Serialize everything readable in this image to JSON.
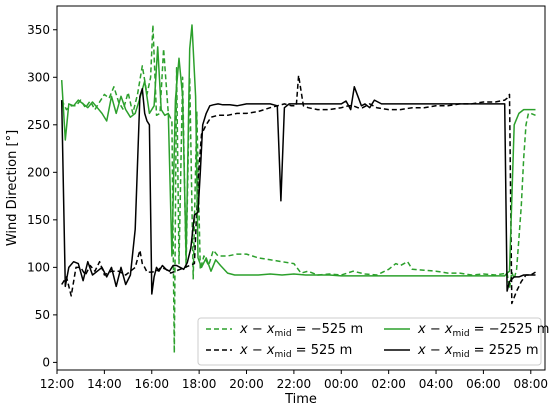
{
  "chart_data": {
    "type": "line",
    "xlabel": "Time",
    "ylabel": "Wind Direction [°]",
    "xlim": [
      12.0,
      32.6
    ],
    "ylim": [
      -8,
      375
    ],
    "x_ticks": [
      12,
      14,
      16,
      18,
      20,
      22,
      24,
      26,
      28,
      30,
      32
    ],
    "x_tick_labels": [
      "12:00",
      "14:00",
      "16:00",
      "18:00",
      "20:00",
      "22:00",
      "00:00",
      "02:00",
      "04:00",
      "06:00",
      "08:00"
    ],
    "y_ticks": [
      0,
      50,
      100,
      150,
      200,
      250,
      300,
      350
    ],
    "y_tick_labels": [
      "0",
      "50",
      "100",
      "150",
      "200",
      "250",
      "300",
      "350"
    ],
    "grid": false,
    "legend_position": "lower-right",
    "series": [
      {
        "name_prefix": "x − x",
        "name_sub": "mid",
        "name_suffix": " = −525 m",
        "color": "#2ca02c",
        "dash": "dashed",
        "x": [
          12.2,
          12.4,
          12.6,
          12.8,
          13.0,
          13.2,
          13.4,
          13.6,
          13.8,
          14.0,
          14.2,
          14.4,
          14.6,
          14.8,
          15.0,
          15.2,
          15.4,
          15.6,
          15.8,
          15.95,
          16.05,
          16.2,
          16.35,
          16.5,
          16.7,
          16.85,
          16.95,
          17.05,
          17.15,
          17.3,
          17.45,
          17.6,
          17.75,
          17.9,
          18.05,
          18.2,
          18.4,
          18.6,
          18.8,
          19.2,
          19.6,
          20.0,
          20.5,
          21.0,
          21.5,
          22.0,
          22.3,
          22.6,
          23.0,
          23.5,
          24.0,
          24.5,
          25.0,
          25.5,
          26.0,
          26.3,
          26.5,
          26.8,
          27.0,
          27.5,
          28.0,
          28.5,
          29.0,
          29.5,
          30.0,
          30.5,
          31.0,
          31.1,
          31.2,
          31.3,
          31.4,
          31.5,
          31.6,
          31.7,
          31.8,
          31.9,
          32.0,
          32.2
        ],
        "y": [
          276,
          266,
          270,
          270,
          276,
          268,
          275,
          266,
          274,
          282,
          278,
          290,
          274,
          266,
          284,
          262,
          282,
          312,
          282,
          300,
          355,
          260,
          262,
          330,
          262,
          254,
          10,
          310,
          104,
          300,
          100,
          300,
          88,
          264,
          98,
          112,
          102,
          118,
          112,
          112,
          114,
          114,
          110,
          108,
          106,
          104,
          94,
          96,
          92,
          93,
          92,
          96,
          93,
          92,
          98,
          104,
          102,
          106,
          98,
          97,
          96,
          94,
          94,
          92,
          93,
          92,
          94,
          78,
          95,
          88,
          98,
          130,
          165,
          215,
          250,
          262,
          262,
          260
        ]
      },
      {
        "name_prefix": "x − x",
        "name_sub": "mid",
        "name_suffix": " = 525 m",
        "color": "#000000",
        "dash": "dashed",
        "x": [
          12.2,
          12.4,
          12.6,
          12.8,
          13.0,
          13.2,
          13.4,
          13.6,
          13.8,
          14.0,
          14.3,
          14.6,
          14.9,
          15.1,
          15.3,
          15.5,
          15.6,
          15.7,
          15.8,
          15.9,
          16.0,
          16.2,
          16.4,
          16.6,
          16.8,
          17.0,
          17.2,
          17.4,
          17.6,
          17.8,
          17.95,
          18.1,
          18.3,
          18.5,
          18.8,
          19.2,
          19.6,
          20.0,
          20.5,
          21.0,
          21.3,
          21.6,
          21.9,
          22.1,
          22.2,
          22.4,
          22.6,
          23.0,
          23.5,
          24.0,
          24.3,
          24.5,
          24.7,
          24.9,
          25.2,
          25.5,
          26.0,
          26.5,
          27.0,
          27.5,
          28.0,
          28.5,
          29.0,
          29.5,
          30.0,
          30.5,
          30.9,
          31.0,
          31.1,
          31.2,
          31.4,
          31.6,
          31.8,
          32.0,
          32.2
        ],
        "y": [
          82,
          90,
          70,
          100,
          100,
          92,
          102,
          96,
          106,
          92,
          96,
          96,
          92,
          96,
          100,
          118,
          104,
          100,
          95,
          95,
          95,
          96,
          100,
          98,
          94,
          96,
          98,
          100,
          102,
          104,
          190,
          240,
          250,
          258,
          260,
          260,
          262,
          262,
          264,
          268,
          270,
          272,
          270,
          270,
          302,
          270,
          268,
          266,
          266,
          268,
          270,
          270,
          268,
          268,
          272,
          268,
          266,
          266,
          268,
          268,
          270,
          270,
          272,
          272,
          274,
          274,
          276,
          278,
          282,
          62,
          75,
          85,
          92,
          92,
          95
        ]
      },
      {
        "name_prefix": "x − x",
        "name_sub": "mid",
        "name_suffix": " = −2525 m",
        "color": "#2ca02c",
        "dash": "solid",
        "x": [
          12.2,
          12.35,
          12.5,
          12.7,
          12.9,
          13.1,
          13.3,
          13.5,
          13.7,
          13.9,
          14.1,
          14.3,
          14.5,
          14.7,
          14.9,
          15.1,
          15.3,
          15.5,
          15.7,
          15.9,
          16.1,
          16.25,
          16.4,
          16.55,
          16.7,
          16.85,
          17.0,
          17.15,
          17.3,
          17.45,
          17.6,
          17.7,
          17.85,
          17.95,
          18.1,
          18.3,
          18.5,
          18.7,
          18.9,
          19.2,
          19.5,
          20.0,
          20.5,
          21.0,
          21.5,
          22.0,
          22.5,
          23.0,
          23.5,
          24.0,
          24.5,
          25.0,
          25.5,
          26.0,
          26.5,
          27.0,
          27.5,
          28.0,
          28.5,
          29.0,
          29.5,
          30.0,
          30.5,
          30.9,
          31.0,
          31.1,
          31.3,
          31.5,
          31.7,
          31.9,
          32.2
        ],
        "y": [
          297,
          234,
          272,
          270,
          276,
          272,
          268,
          274,
          268,
          262,
          254,
          280,
          262,
          280,
          266,
          258,
          262,
          278,
          296,
          262,
          270,
          332,
          266,
          260,
          262,
          112,
          276,
          320,
          280,
          110,
          330,
          355,
          280,
          110,
          100,
          110,
          96,
          108,
          102,
          94,
          92,
          92,
          92,
          93,
          92,
          93,
          92,
          92,
          92,
          91,
          91,
          91,
          91,
          91,
          91,
          91,
          91,
          91,
          91,
          91,
          91,
          91,
          91,
          91,
          94,
          96,
          250,
          262,
          266,
          266,
          266
        ]
      },
      {
        "name_prefix": "x − x",
        "name_sub": "mid",
        "name_suffix": " = 2525 m",
        "color": "#000000",
        "dash": "solid",
        "x": [
          12.2,
          12.35,
          12.5,
          12.7,
          12.9,
          13.1,
          13.3,
          13.5,
          13.7,
          13.9,
          14.1,
          14.3,
          14.5,
          14.7,
          14.9,
          15.1,
          15.3,
          15.5,
          15.6,
          15.7,
          15.8,
          15.9,
          16.0,
          16.1,
          16.2,
          16.3,
          16.45,
          16.6,
          16.75,
          16.9,
          17.05,
          17.2,
          17.35,
          17.5,
          17.65,
          17.8,
          17.95,
          18.05,
          18.15,
          18.3,
          18.45,
          18.6,
          18.8,
          19.0,
          19.3,
          19.6,
          20.0,
          20.5,
          21.0,
          21.3,
          21.45,
          21.6,
          21.8,
          22.0,
          22.5,
          23.0,
          23.5,
          24.0,
          24.2,
          24.4,
          24.55,
          24.7,
          24.85,
          25.0,
          25.2,
          25.4,
          25.7,
          26.0,
          26.5,
          27.0,
          27.5,
          28.0,
          28.5,
          29.0,
          29.5,
          30.0,
          30.5,
          30.9,
          31.0,
          31.1,
          31.3,
          31.5,
          31.7,
          31.9,
          32.2
        ],
        "y": [
          276,
          80,
          100,
          106,
          104,
          86,
          106,
          92,
          96,
          100,
          90,
          100,
          80,
          100,
          82,
          92,
          140,
          280,
          288,
          262,
          254,
          250,
          72,
          90,
          100,
          96,
          102,
          98,
          96,
          102,
          102,
          100,
          98,
          105,
          120,
          155,
          158,
          200,
          250,
          262,
          270,
          271,
          272,
          271,
          271,
          270,
          272,
          272,
          272,
          270,
          170,
          268,
          272,
          272,
          272,
          272,
          272,
          272,
          275,
          266,
          290,
          280,
          270,
          272,
          268,
          276,
          272,
          272,
          272,
          272,
          272,
          272,
          272,
          272,
          272,
          272,
          272,
          272,
          75,
          85,
          90,
          90,
          92,
          92,
          92
        ]
      }
    ]
  },
  "legend_order": [
    0,
    1,
    2,
    3
  ]
}
